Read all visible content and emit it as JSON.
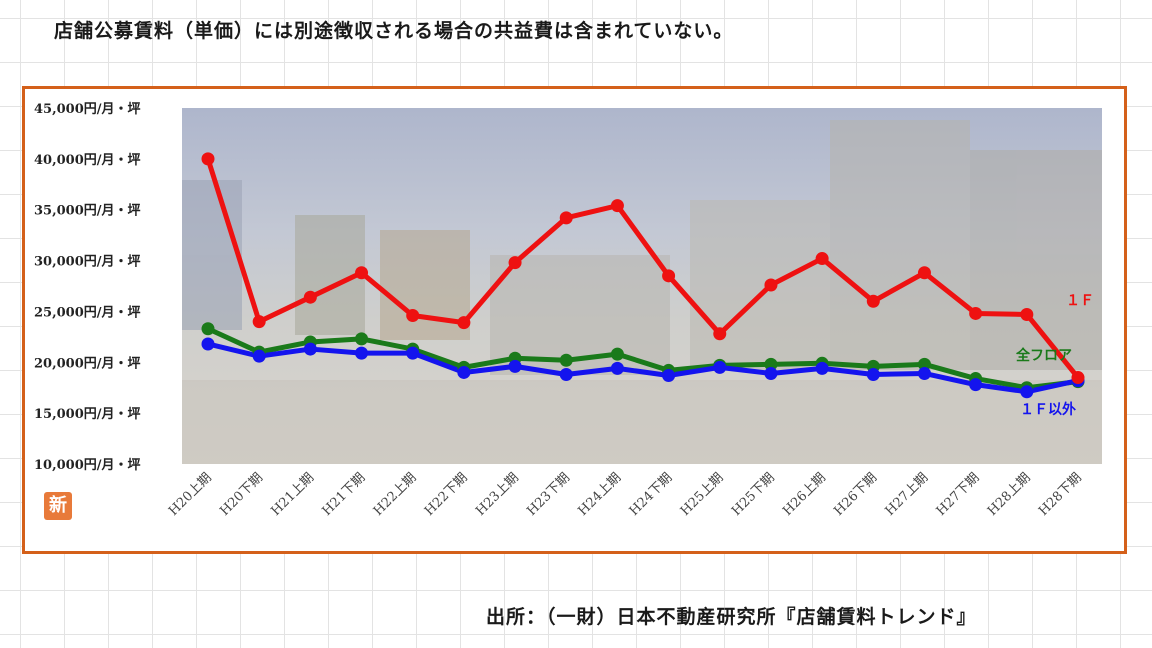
{
  "note": "店舗公募賃料（単価）には別途徴収される場合の共益費は含まれていない。",
  "source": "出所：（一財）日本不動産研究所『店舗賃料トレンド』",
  "badge": "新",
  "colors": {
    "frame": "#d4601a",
    "one_f": "#ee1111",
    "all_floor": "#1a7a1a",
    "not_one_f": "#1414ee"
  },
  "chart_data": {
    "type": "line",
    "title": "",
    "xlabel": "",
    "ylabel": "",
    "ylim": [
      10000,
      45000
    ],
    "y_ticks": [
      45000,
      40000,
      35000,
      30000,
      25000,
      20000,
      15000,
      10000
    ],
    "y_tick_labels": [
      "45,000円/月・坪",
      "40,000円/月・坪",
      "35,000円/月・坪",
      "30,000円/月・坪",
      "25,000円/月・坪",
      "20,000円/月・坪",
      "15,000円/月・坪",
      "10,000円/月・坪"
    ],
    "grid": false,
    "categories": [
      "H20上期",
      "H20下期",
      "H21上期",
      "H21下期",
      "H22上期",
      "H22下期",
      "H23上期",
      "H23下期",
      "H24上期",
      "H24下期",
      "H25上期",
      "H25下期",
      "H26上期",
      "H26下期",
      "H27上期",
      "H27下期",
      "H28上期",
      "H28下期"
    ],
    "series": [
      {
        "name": "１Ｆ",
        "color": "#ee1111",
        "values": [
          40000,
          24000,
          26400,
          28800,
          24600,
          23900,
          29800,
          34200,
          35400,
          28500,
          22800,
          27600,
          30200,
          26000,
          28800,
          24800,
          24700,
          18500
        ]
      },
      {
        "name": "全フロア",
        "color": "#1a7a1a",
        "values": [
          23300,
          21000,
          22000,
          22300,
          21300,
          19500,
          20400,
          20200,
          20800,
          19200,
          19700,
          19800,
          19900,
          19600,
          19800,
          18400,
          17500,
          18100
        ]
      },
      {
        "name": "１Ｆ以外",
        "color": "#1414ee",
        "values": [
          21800,
          20600,
          21300,
          20900,
          20900,
          19000,
          19600,
          18800,
          19400,
          18700,
          19500,
          18900,
          19400,
          18800,
          18900,
          17800,
          17100,
          18200
        ]
      }
    ]
  }
}
